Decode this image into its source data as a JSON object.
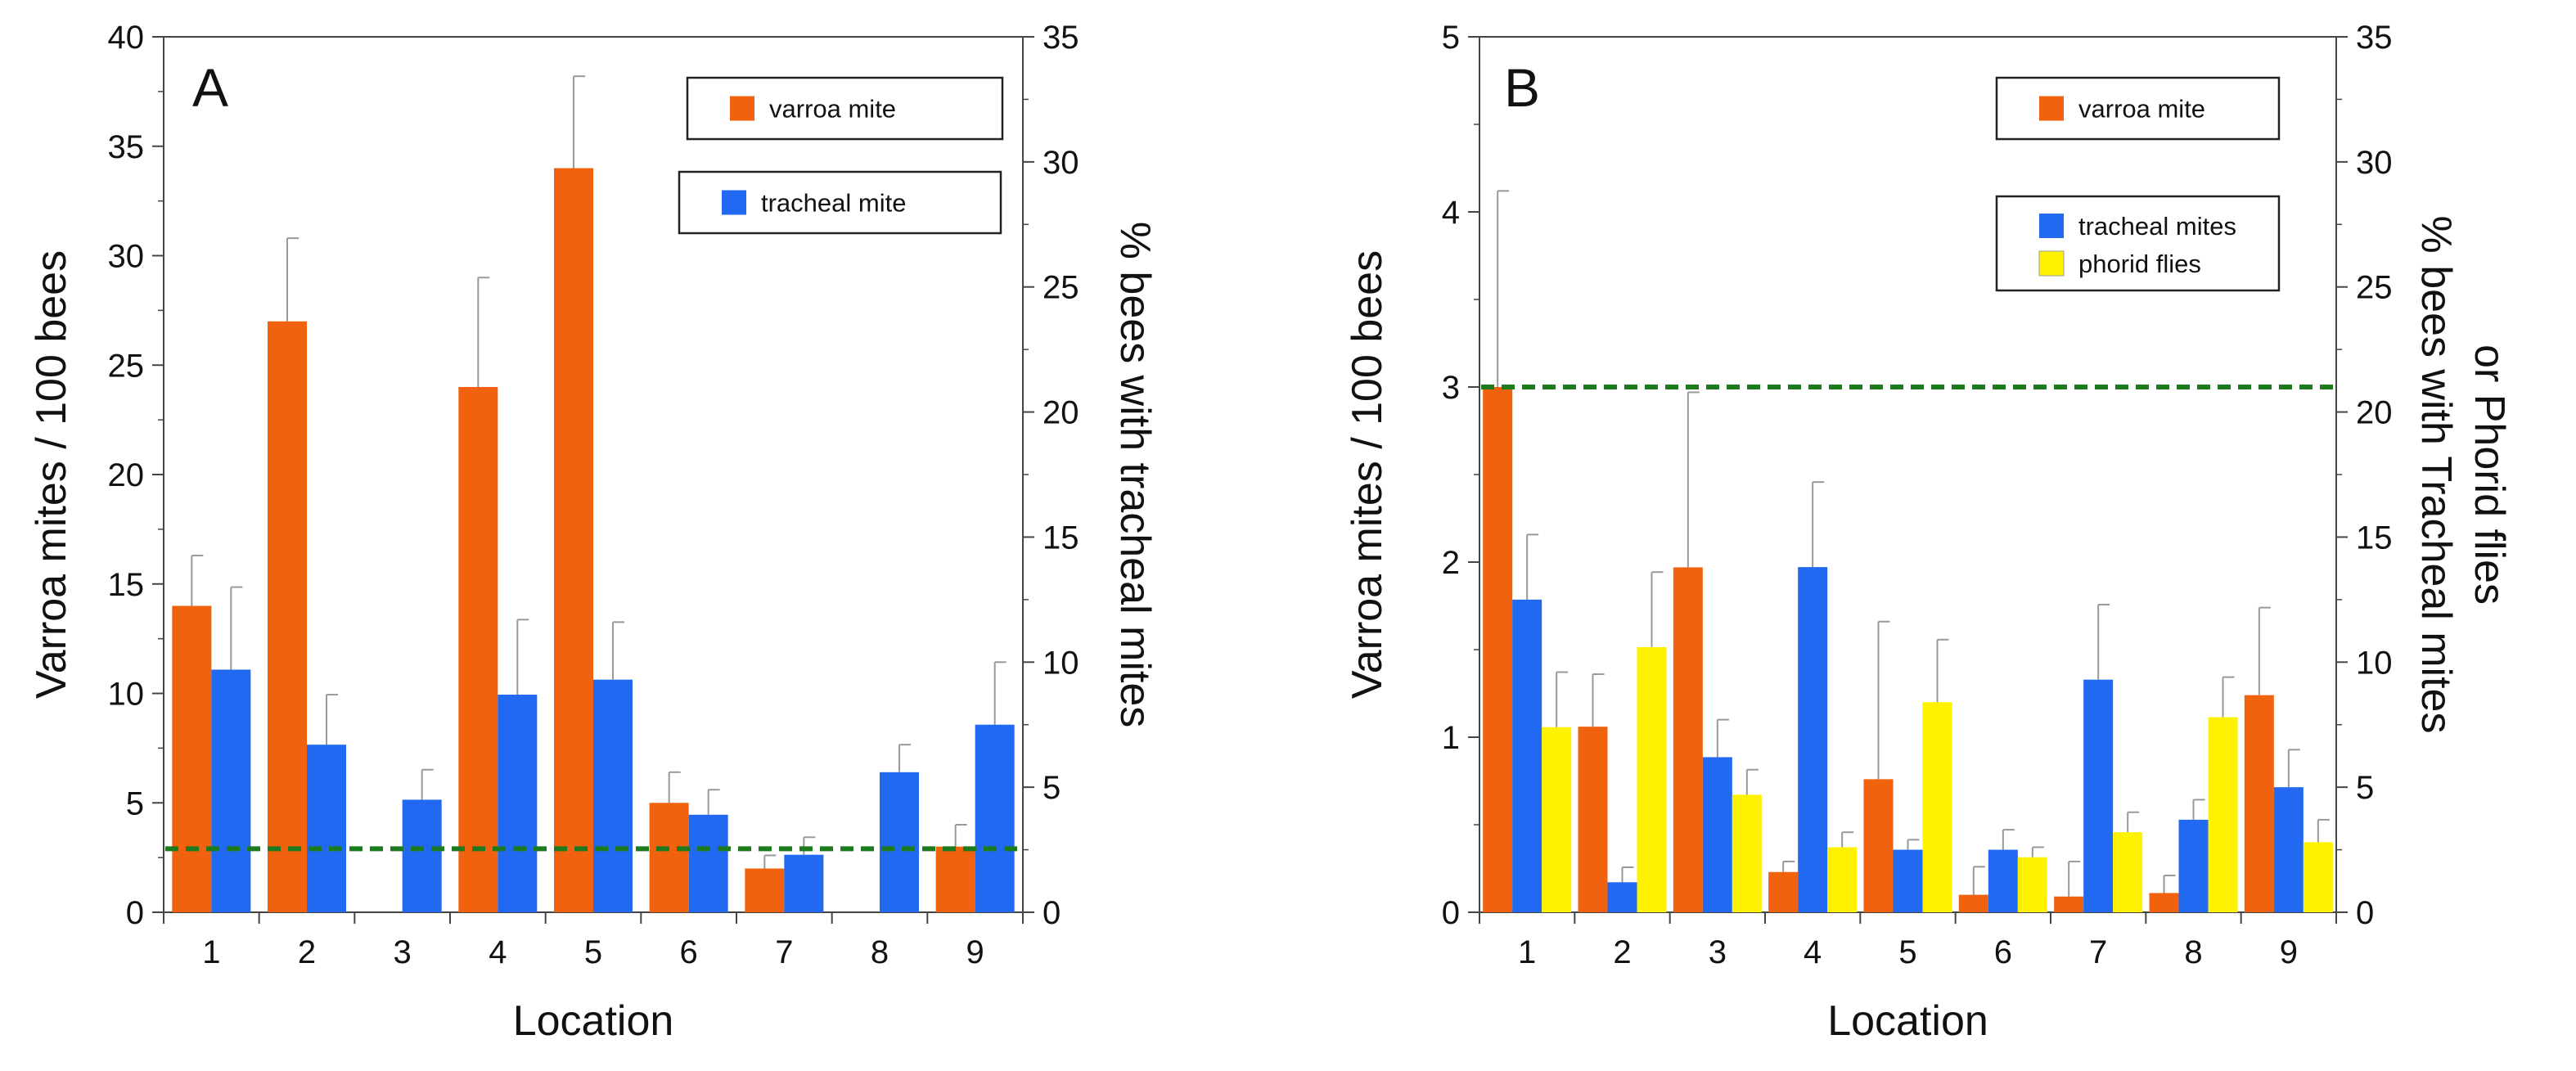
{
  "chart_data": [
    {
      "type": "bar",
      "panel_label": "A",
      "xlabel": "Location",
      "ylabel_left": "Varroa mites / 100 bees",
      "ylabel_right": "% bees with tracheal mites",
      "left_ylim": [
        0,
        40
      ],
      "right_ylim": [
        0,
        35
      ],
      "left_ticks": [
        "0",
        "5",
        "10",
        "15",
        "20",
        "25",
        "30",
        "35",
        "40"
      ],
      "right_ticks": [
        "0",
        "5",
        "10",
        "15",
        "20",
        "25",
        "30",
        "35"
      ],
      "categories": [
        "1",
        "2",
        "3",
        "4",
        "5",
        "6",
        "7",
        "8",
        "9"
      ],
      "series": [
        {
          "name": "varroa mite",
          "axis": "left",
          "color": "#F0620E",
          "values": [
            14,
            27,
            0,
            24,
            34,
            5,
            2,
            0,
            3
          ],
          "errors": [
            2.3,
            3.8,
            0,
            5,
            4.2,
            1.4,
            0.6,
            0,
            1
          ]
        },
        {
          "name": "tracheal mite",
          "axis": "right",
          "color": "#2069F0",
          "values": [
            9.7,
            6.7,
            4.5,
            8.7,
            9.3,
            3.9,
            2.3,
            5.6,
            7.5
          ],
          "errors": [
            3.3,
            2.0,
            1.2,
            3.0,
            2.3,
            1.0,
            0.7,
            1.1,
            2.5
          ]
        }
      ],
      "legend": [
        {
          "label": "varroa mite",
          "color": "#F0620E"
        },
        {
          "label": "tracheal mite",
          "color": "#2069F0"
        }
      ],
      "threshold": {
        "axis": "left",
        "value": 2.9,
        "color": "#1E7A1E",
        "style": "dashed"
      }
    },
    {
      "type": "bar",
      "panel_label": "B",
      "xlabel": "Location",
      "ylabel_left": "Varroa mites / 100 bees",
      "ylabel_right_line1": "% bees with Tracheal mites",
      "ylabel_right_line2": "or Phorid flies",
      "left_ylim": [
        0,
        5
      ],
      "right_ylim": [
        0,
        35
      ],
      "left_ticks": [
        "0",
        "1",
        "2",
        "3",
        "4",
        "5"
      ],
      "right_ticks": [
        "0",
        "5",
        "10",
        "15",
        "20",
        "25",
        "30",
        "35"
      ],
      "categories": [
        "1",
        "2",
        "3",
        "4",
        "5",
        "6",
        "7",
        "8",
        "9"
      ],
      "series": [
        {
          "name": "varroa mite",
          "axis": "left",
          "color": "#F0620E",
          "values": [
            3.0,
            1.06,
            1.97,
            0.23,
            0.76,
            0.1,
            0.09,
            0.11,
            1.24
          ],
          "errors": [
            1.12,
            0.3,
            1.0,
            0.06,
            0.9,
            0.16,
            0.2,
            0.1,
            0.5
          ]
        },
        {
          "name": "tracheal mites",
          "axis": "right",
          "color": "#2069F0",
          "values": [
            12.5,
            1.2,
            6.2,
            13.8,
            2.5,
            2.5,
            9.3,
            3.7,
            5.0
          ],
          "errors": [
            2.6,
            0.6,
            1.5,
            3.4,
            0.4,
            0.8,
            3.0,
            0.8,
            1.5
          ]
        },
        {
          "name": "phorid flies",
          "axis": "right",
          "color": "#FFF200",
          "values": [
            7.4,
            10.6,
            4.7,
            2.6,
            8.4,
            2.2,
            3.2,
            7.8,
            2.8
          ],
          "errors": [
            2.2,
            3.0,
            1.0,
            0.6,
            2.5,
            0.4,
            0.8,
            1.6,
            0.9
          ]
        }
      ],
      "legend_top": [
        {
          "label": "varroa mite",
          "color": "#F0620E"
        }
      ],
      "legend_bottom": [
        {
          "label": "tracheal mites",
          "color": "#2069F0"
        },
        {
          "label": "phorid flies",
          "color": "#FFF200"
        }
      ],
      "threshold": {
        "axis": "left",
        "value": 3.0,
        "color": "#1E7A1E",
        "style": "dashed"
      }
    }
  ]
}
